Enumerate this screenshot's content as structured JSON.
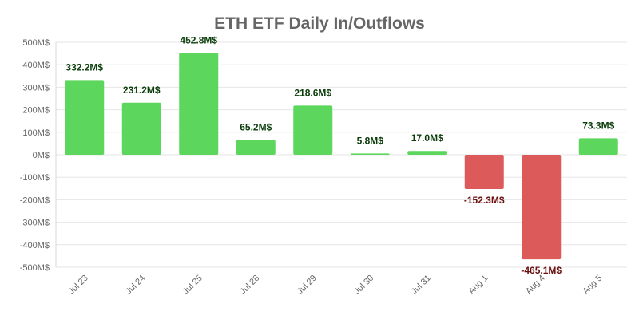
{
  "chart_data": {
    "type": "bar",
    "title": "ETH ETF Daily In/Outflows",
    "xlabel": "",
    "ylabel": "",
    "categories": [
      "Jul 23",
      "Jul 24",
      "Jul 25",
      "Jul 28",
      "Jul 29",
      "Jul 30",
      "Jul 31",
      "Aug 1",
      "Aug 4",
      "Aug 5"
    ],
    "values": [
      332.2,
      231.2,
      452.8,
      65.2,
      218.6,
      5.8,
      17.0,
      -152.3,
      -465.1,
      73.3
    ],
    "data_labels": [
      "332.2M$",
      "231.2M$",
      "452.8M$",
      "65.2M$",
      "218.6M$",
      "5.8M$",
      "17.0M$",
      "-152.3M$",
      "-465.1M$",
      "73.3M$"
    ],
    "ylim": [
      -500,
      500
    ],
    "yticks": [
      500,
      400,
      300,
      200,
      100,
      0,
      -100,
      -200,
      -300,
      -400,
      -500
    ],
    "ytick_labels": [
      "500M$",
      "400M$",
      "300M$",
      "200M$",
      "100M$",
      "0M$",
      "-100M$",
      "-200M$",
      "-300M$",
      "-400M$",
      "-500M$"
    ],
    "grid": true,
    "legend": "none",
    "colors": {
      "positive": "#5cd65c",
      "negative": "#dc5a5a",
      "positive_label": "#0b3d0b",
      "negative_label": "#6b0f0f",
      "grid": "#e6e6e6",
      "text": "#666666"
    }
  }
}
